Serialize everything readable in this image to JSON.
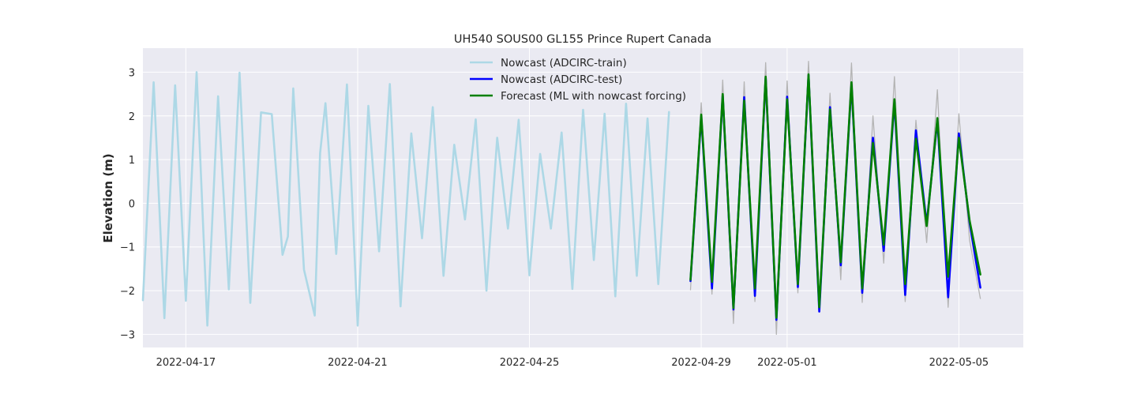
{
  "chart_data": {
    "type": "line",
    "title": "UH540 SOUS00 GL155 Prince Rupert Canada",
    "xlabel": "",
    "ylabel": "Elevation (m)",
    "x_axis": {
      "start": "2022-04-16T00:00",
      "end": "2022-05-06T12:00",
      "ticks": [
        "2022-04-17",
        "2022-04-21",
        "2022-04-25",
        "2022-04-29",
        "2022-05-01",
        "2022-05-05"
      ]
    },
    "ylim": [
      -3.3,
      3.55
    ],
    "yticks": [
      -3,
      -2,
      -1,
      0,
      1,
      2,
      3
    ],
    "ytick_labels": [
      "−3",
      "−2",
      "−1",
      "0",
      "1",
      "2",
      "3"
    ],
    "grid": true,
    "legend_position": "top-center",
    "background": "#eaeaf2",
    "series": [
      {
        "name": "Nowcast (ADCIRC-train)",
        "color": "#add8e6",
        "x": [
          "2022-04-16T00:00",
          "2022-04-16T06:00",
          "2022-04-16T12:00",
          "2022-04-16T18:00",
          "2022-04-17T00:00",
          "2022-04-17T06:00",
          "2022-04-17T12:00",
          "2022-04-17T18:00",
          "2022-04-18T00:00",
          "2022-04-18T06:00",
          "2022-04-18T12:00",
          "2022-04-18T18:00",
          "2022-04-19T00:00",
          "2022-04-19T06:00",
          "2022-04-19T09:00",
          "2022-04-19T12:00",
          "2022-04-19T18:00",
          "2022-04-20T00:00",
          "2022-04-20T03:00",
          "2022-04-20T06:00",
          "2022-04-20T12:00",
          "2022-04-20T18:00",
          "2022-04-21T00:00",
          "2022-04-21T06:00",
          "2022-04-21T12:00",
          "2022-04-21T18:00",
          "2022-04-22T00:00",
          "2022-04-22T06:00",
          "2022-04-22T12:00",
          "2022-04-22T18:00",
          "2022-04-23T00:00",
          "2022-04-23T06:00",
          "2022-04-23T12:00",
          "2022-04-23T18:00",
          "2022-04-24T00:00",
          "2022-04-24T06:00",
          "2022-04-24T12:00",
          "2022-04-24T18:00",
          "2022-04-25T00:00",
          "2022-04-25T06:00",
          "2022-04-25T12:00",
          "2022-04-25T18:00",
          "2022-04-26T00:00",
          "2022-04-26T06:00",
          "2022-04-26T12:00",
          "2022-04-26T18:00",
          "2022-04-27T00:00",
          "2022-04-27T06:00",
          "2022-04-27T12:00",
          "2022-04-27T18:00",
          "2022-04-28T00:00",
          "2022-04-28T06:00"
        ],
        "values": [
          -2.22,
          2.77,
          -2.63,
          2.7,
          -2.23,
          3.0,
          -2.8,
          2.45,
          -1.97,
          2.99,
          -2.28,
          2.08,
          2.04,
          -1.18,
          -0.76,
          2.63,
          -1.52,
          -2.57,
          1.15,
          2.29,
          -1.16,
          2.72,
          -2.8,
          2.23,
          -1.1,
          2.73,
          -2.36,
          1.6,
          -0.8,
          2.2,
          -1.66,
          1.34,
          -0.37,
          1.92,
          -2.0,
          1.5,
          -0.58,
          1.91,
          -1.65,
          1.13,
          -0.58,
          1.62,
          -1.96,
          2.14,
          -1.3,
          2.05,
          -2.13,
          2.28,
          -1.66,
          1.94,
          -1.85,
          2.09
        ]
      },
      {
        "name": "Nowcast (ADCIRC-test)",
        "color": "#0000ff",
        "x": [
          "2022-04-28T18:00",
          "2022-04-29T00:00",
          "2022-04-29T06:00",
          "2022-04-29T12:00",
          "2022-04-29T18:00",
          "2022-04-30T00:00",
          "2022-04-30T06:00",
          "2022-04-30T12:00",
          "2022-04-30T18:00",
          "2022-05-01T00:00",
          "2022-05-01T06:00",
          "2022-05-01T12:00",
          "2022-05-01T18:00",
          "2022-05-02T00:00",
          "2022-05-02T06:00",
          "2022-05-02T12:00",
          "2022-05-02T18:00",
          "2022-05-03T00:00",
          "2022-05-03T06:00",
          "2022-05-03T12:00",
          "2022-05-03T18:00",
          "2022-05-04T00:00",
          "2022-05-04T06:00",
          "2022-05-04T12:00",
          "2022-05-04T18:00",
          "2022-05-05T00:00",
          "2022-05-05T06:00",
          "2022-05-05T12:00"
        ],
        "values": [
          -1.78,
          1.98,
          -1.95,
          2.47,
          -2.43,
          2.43,
          -2.12,
          2.87,
          -2.67,
          2.44,
          -1.92,
          2.93,
          -2.48,
          2.2,
          -1.42,
          2.72,
          -2.05,
          1.5,
          -1.09,
          2.32,
          -2.1,
          1.67,
          -0.47,
          1.9,
          -2.15,
          1.6,
          -0.45,
          -1.93
        ]
      },
      {
        "name": "Forecast (ML with nowcast forcing)",
        "color": "#008000",
        "x": [
          "2022-04-28T18:00",
          "2022-04-29T00:00",
          "2022-04-29T06:00",
          "2022-04-29T12:00",
          "2022-04-29T18:00",
          "2022-04-30T00:00",
          "2022-04-30T06:00",
          "2022-04-30T12:00",
          "2022-04-30T18:00",
          "2022-05-01T00:00",
          "2022-05-01T06:00",
          "2022-05-01T12:00",
          "2022-05-01T18:00",
          "2022-05-02T00:00",
          "2022-05-02T06:00",
          "2022-05-02T12:00",
          "2022-05-02T18:00",
          "2022-05-03T00:00",
          "2022-05-03T06:00",
          "2022-05-03T12:00",
          "2022-05-03T18:00",
          "2022-05-04T00:00",
          "2022-05-04T06:00",
          "2022-05-04T12:00",
          "2022-05-04T18:00",
          "2022-05-05T00:00",
          "2022-05-05T06:00",
          "2022-05-05T12:00"
        ],
        "values": [
          -1.75,
          2.03,
          -1.8,
          2.5,
          -2.4,
          2.35,
          -1.95,
          2.9,
          -2.62,
          2.38,
          -1.85,
          2.95,
          -2.38,
          2.15,
          -1.35,
          2.77,
          -1.95,
          1.38,
          -0.95,
          2.38,
          -1.85,
          1.48,
          -0.52,
          1.95,
          -1.68,
          1.5,
          -0.4,
          -1.63
        ]
      },
      {
        "name": "",
        "color": "#b4b4b4",
        "x": [
          "2022-04-28T18:00",
          "2022-04-29T00:00",
          "2022-04-29T06:00",
          "2022-04-29T12:00",
          "2022-04-29T18:00",
          "2022-04-30T00:00",
          "2022-04-30T06:00",
          "2022-04-30T12:00",
          "2022-04-30T18:00",
          "2022-05-01T00:00",
          "2022-05-01T06:00",
          "2022-05-01T12:00",
          "2022-05-01T18:00",
          "2022-05-02T00:00",
          "2022-05-02T06:00",
          "2022-05-02T12:00",
          "2022-05-02T18:00",
          "2022-05-03T00:00",
          "2022-05-03T06:00",
          "2022-05-03T12:00",
          "2022-05-03T18:00",
          "2022-05-04T00:00",
          "2022-05-04T06:00",
          "2022-05-04T12:00",
          "2022-05-04T18:00",
          "2022-05-05T00:00",
          "2022-05-05T06:00",
          "2022-05-05T12:00"
        ],
        "values": [
          -1.98,
          2.3,
          -2.08,
          2.82,
          -2.75,
          2.78,
          -2.25,
          3.22,
          -3.0,
          2.8,
          -2.05,
          3.25,
          -2.45,
          2.52,
          -1.75,
          3.21,
          -2.27,
          2.0,
          -1.37,
          2.9,
          -2.25,
          1.9,
          -0.9,
          2.6,
          -2.38,
          2.05,
          -0.85,
          -2.18
        ]
      }
    ]
  }
}
